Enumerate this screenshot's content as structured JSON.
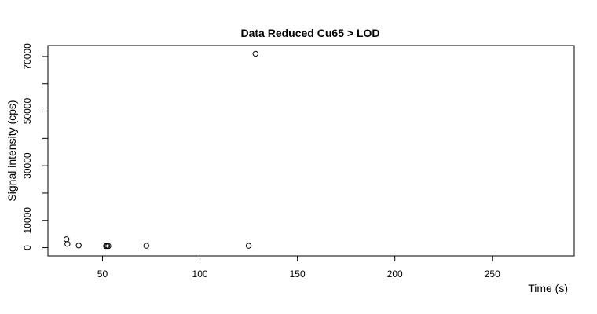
{
  "chart_data": {
    "type": "scatter",
    "title": "Data Reduced Cu65 > LOD",
    "xlabel": "Time (s)",
    "ylabel": "Signal intensity (cps)",
    "xlim": [
      22,
      292
    ],
    "ylim": [
      -3000,
      74000
    ],
    "x_ticks": [
      50,
      100,
      150,
      200,
      250
    ],
    "x_tick_labels": [
      "50",
      "100",
      "150",
      "200",
      "250"
    ],
    "y_ticks": [
      0,
      10000,
      30000,
      50000,
      70000
    ],
    "y_tick_labels": [
      "0",
      "10000",
      "30000",
      "50000",
      "70000"
    ],
    "y_minor_ticks": [
      20000,
      40000,
      60000
    ],
    "grid": false,
    "points": [
      {
        "x": 31.5,
        "y": 3100
      },
      {
        "x": 32.0,
        "y": 1400
      },
      {
        "x": 37.8,
        "y": 800
      },
      {
        "x": 51.8,
        "y": 600
      },
      {
        "x": 52.4,
        "y": 600
      },
      {
        "x": 53.0,
        "y": 600
      },
      {
        "x": 72.5,
        "y": 700
      },
      {
        "x": 125.0,
        "y": 700
      },
      {
        "x": 128.5,
        "y": 71000
      }
    ]
  }
}
